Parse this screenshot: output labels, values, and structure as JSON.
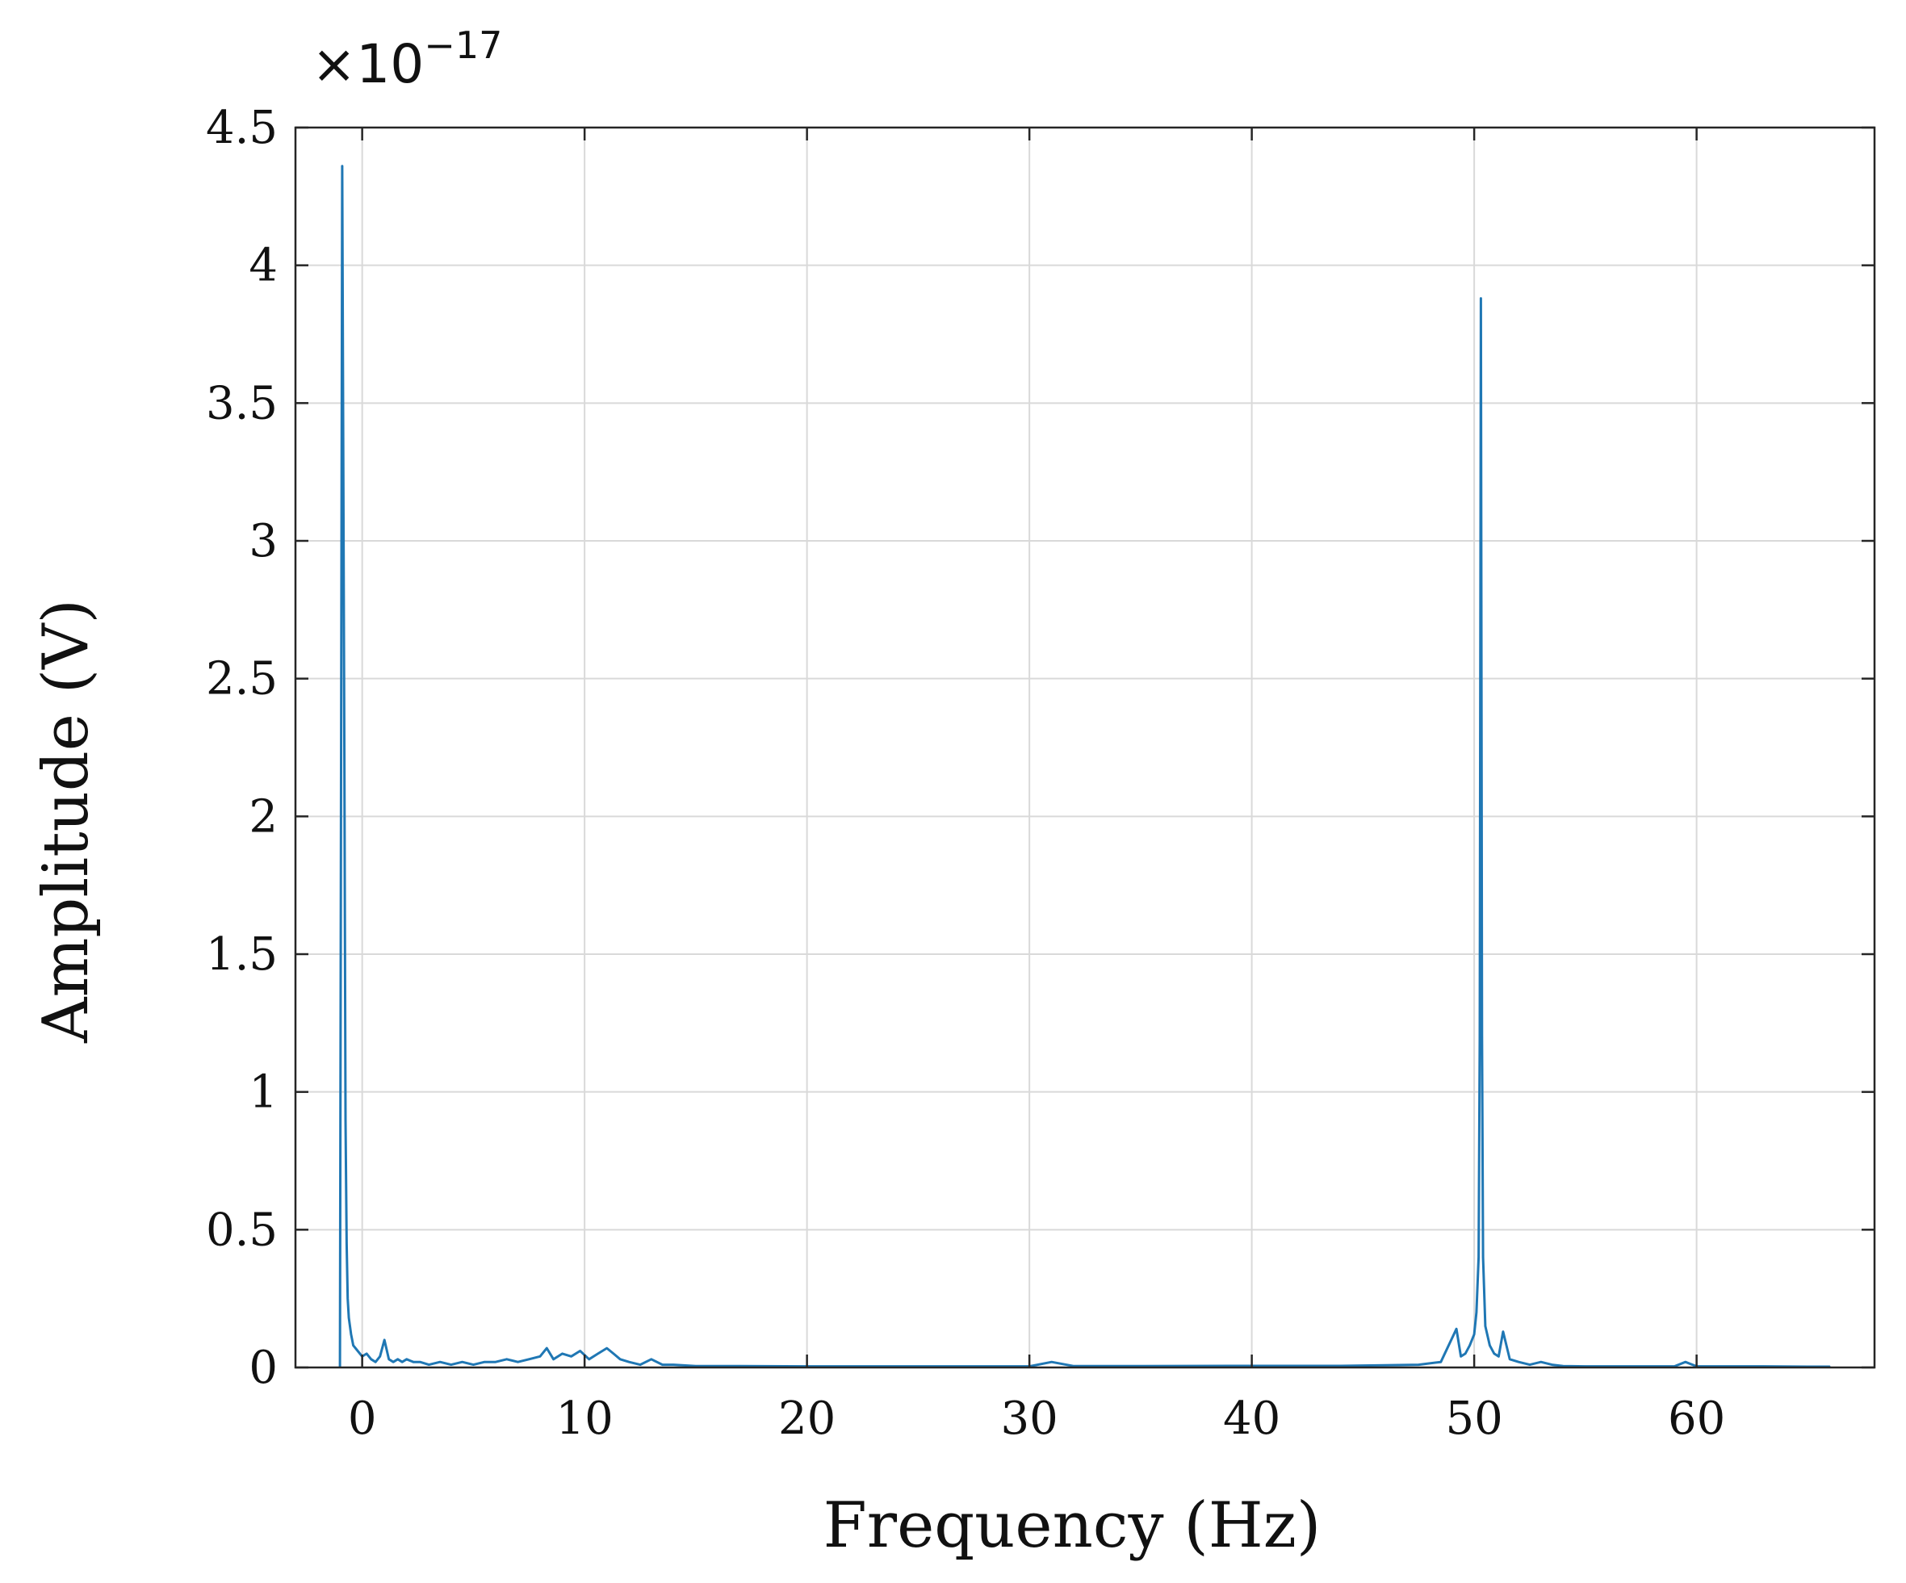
{
  "chart_data": {
    "type": "line",
    "title": "",
    "xlabel": "Frequency (Hz)",
    "ylabel": "Amplitude (V)",
    "y_exponent_base": "×10",
    "y_exponent_power": "−17",
    "xlim": [
      -3,
      68
    ],
    "ylim": [
      0,
      4.5
    ],
    "x_ticks": [
      0,
      10,
      20,
      30,
      40,
      50,
      60
    ],
    "x_tick_labels": [
      "0",
      "10",
      "20",
      "30",
      "40",
      "50",
      "60"
    ],
    "y_ticks": [
      0,
      0.5,
      1,
      1.5,
      2,
      2.5,
      3,
      3.5,
      4,
      4.5
    ],
    "y_tick_labels": [
      "0",
      "0.5",
      "1",
      "1.5",
      "2",
      "2.5",
      "3",
      "3.5",
      "4",
      "4.5"
    ],
    "grid": true,
    "series_color": "#1f77b4",
    "series": [
      {
        "name": "",
        "x": [
          -1.0,
          -0.9,
          -0.8,
          -0.75,
          -0.7,
          -0.65,
          -0.6,
          -0.5,
          -0.4,
          -0.2,
          0.0,
          0.2,
          0.4,
          0.6,
          0.8,
          1.0,
          1.2,
          1.4,
          1.6,
          1.8,
          2.0,
          2.3,
          2.6,
          3.0,
          3.5,
          4.0,
          4.5,
          5.0,
          5.5,
          6.0,
          6.5,
          7.0,
          7.5,
          8.0,
          8.3,
          8.6,
          9.0,
          9.4,
          9.8,
          10.2,
          10.6,
          11.0,
          11.3,
          11.6,
          12.0,
          12.5,
          13.0,
          13.5,
          14.0,
          15.0,
          17.0,
          20.0,
          25.0,
          30.0,
          31.0,
          32.0,
          35.0,
          40.0,
          44.0,
          46.0,
          47.5,
          48.5,
          49.2,
          49.4,
          49.6,
          49.8,
          50.0,
          50.1,
          50.2,
          50.25,
          50.3,
          50.35,
          50.4,
          50.5,
          50.7,
          50.9,
          51.1,
          51.3,
          51.6,
          52.0,
          52.5,
          53.0,
          53.5,
          54.0,
          55.0,
          56.0,
          57.0,
          58.0,
          59.0,
          59.5,
          60.0,
          61.0,
          63.0,
          65.0,
          66.0
        ],
        "y": [
          0.0,
          4.36,
          2.2,
          0.9,
          0.45,
          0.25,
          0.18,
          0.12,
          0.08,
          0.06,
          0.04,
          0.05,
          0.03,
          0.02,
          0.04,
          0.1,
          0.03,
          0.02,
          0.03,
          0.02,
          0.03,
          0.02,
          0.02,
          0.01,
          0.02,
          0.01,
          0.02,
          0.01,
          0.02,
          0.02,
          0.03,
          0.02,
          0.03,
          0.04,
          0.07,
          0.03,
          0.05,
          0.04,
          0.06,
          0.03,
          0.05,
          0.07,
          0.05,
          0.03,
          0.02,
          0.01,
          0.03,
          0.01,
          0.01,
          0.005,
          0.005,
          0.004,
          0.004,
          0.004,
          0.02,
          0.005,
          0.005,
          0.006,
          0.006,
          0.008,
          0.01,
          0.02,
          0.14,
          0.04,
          0.05,
          0.08,
          0.12,
          0.2,
          0.4,
          1.2,
          3.88,
          1.2,
          0.4,
          0.15,
          0.08,
          0.05,
          0.04,
          0.13,
          0.03,
          0.02,
          0.01,
          0.02,
          0.01,
          0.005,
          0.004,
          0.004,
          0.004,
          0.004,
          0.004,
          0.02,
          0.004,
          0.004,
          0.004,
          0.003,
          0.003
        ]
      }
    ]
  }
}
